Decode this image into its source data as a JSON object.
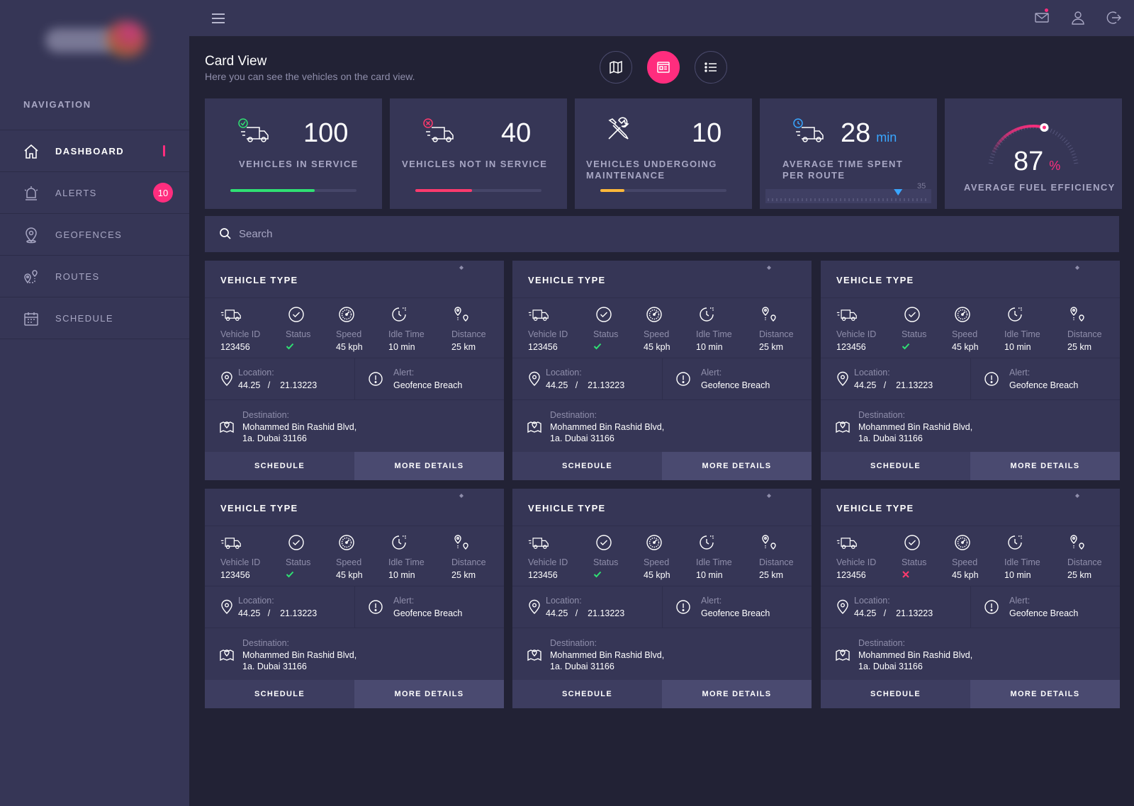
{
  "nav": {
    "heading": "NAVIGATION",
    "items": [
      {
        "label": "DASHBOARD",
        "icon": "home-icon"
      },
      {
        "label": "ALERTS",
        "icon": "alarm-icon",
        "badge": "10"
      },
      {
        "label": "GEOFENCES",
        "icon": "map-pin-icon"
      },
      {
        "label": "ROUTES",
        "icon": "route-icon"
      },
      {
        "label": "SCHEDULE",
        "icon": "calendar-icon"
      }
    ]
  },
  "header": {
    "title": "Card View",
    "subtitle": "Here you can see the vehicles on the card view."
  },
  "stats": [
    {
      "value": "100",
      "label": "VEHICLES IN SERVICE",
      "progress": 0.67,
      "color": "#2fe073"
    },
    {
      "value": "40",
      "label": "VEHICLES NOT IN SERVICE",
      "progress": 0.45,
      "color": "#ff3a6d"
    },
    {
      "value": "10",
      "label": "VEHICLES UNDERGOING",
      "label2": "MAINTENANCE",
      "progress": 0.19,
      "color": "#ffb83a"
    },
    {
      "value": "28",
      "unit": "min",
      "label": "AVERAGE TIME SPENT",
      "label2": "PER ROUTE",
      "scale_max": "35",
      "marker": 0.8
    },
    {
      "value": "87",
      "unit": "%",
      "label": "AVERAGE FUEL EFFICIENCY",
      "gauge": 0.87
    }
  ],
  "search": {
    "placeholder": "Search"
  },
  "labels": {
    "vehicle_type": "VEHICLE TYPE",
    "vehicle_id": "Vehicle ID",
    "status": "Status",
    "speed": "Speed",
    "idle_time": "Idle Time",
    "distance": "Distance",
    "location": "Location:",
    "alert": "Alert:",
    "destination": "Destination:",
    "schedule": "SCHEDULE",
    "more_details": "MORE DETAILS"
  },
  "vehicles": [
    {
      "id": "123456",
      "status": "ok",
      "speed": "45 kph",
      "idle": "10 min",
      "distance": "25 km",
      "lat": "44.25",
      "lng": "21.13223",
      "alert": "Geofence Breach",
      "dest1": "Mohammed Bin Rashid Blvd,",
      "dest2": "1a. Dubai 31166"
    },
    {
      "id": "123456",
      "status": "ok",
      "speed": "45 kph",
      "idle": "10 min",
      "distance": "25 km",
      "lat": "44.25",
      "lng": "21.13223",
      "alert": "Geofence Breach",
      "dest1": "Mohammed Bin Rashid Blvd,",
      "dest2": "1a. Dubai 31166"
    },
    {
      "id": "123456",
      "status": "ok",
      "speed": "45 kph",
      "idle": "10 min",
      "distance": "25 km",
      "lat": "44.25",
      "lng": "21.13223",
      "alert": "Geofence Breach",
      "dest1": "Mohammed Bin Rashid Blvd,",
      "dest2": "1a. Dubai 31166"
    },
    {
      "id": "123456",
      "status": "ok",
      "speed": "45 kph",
      "idle": "10 min",
      "distance": "25 km",
      "lat": "44.25",
      "lng": "21.13223",
      "alert": "Geofence Breach",
      "dest1": "Mohammed Bin Rashid Blvd,",
      "dest2": "1a. Dubai 31166"
    },
    {
      "id": "123456",
      "status": "ok",
      "speed": "45 kph",
      "idle": "10 min",
      "distance": "25 km",
      "lat": "44.25",
      "lng": "21.13223",
      "alert": "Geofence Breach",
      "dest1": "Mohammed Bin Rashid Blvd,",
      "dest2": "1a. Dubai 31166"
    },
    {
      "id": "123456",
      "status": "error",
      "speed": "45 kph",
      "idle": "10 min",
      "distance": "25 km",
      "lat": "44.25",
      "lng": "21.13223",
      "alert": "Geofence Breach",
      "dest1": "Mohammed Bin Rashid Blvd,",
      "dest2": "1a. Dubai 31166"
    }
  ],
  "colors": {
    "accent": "#ff2d7e",
    "ok": "#2fe073",
    "error": "#ff3a6d",
    "info": "#39a6ff"
  }
}
